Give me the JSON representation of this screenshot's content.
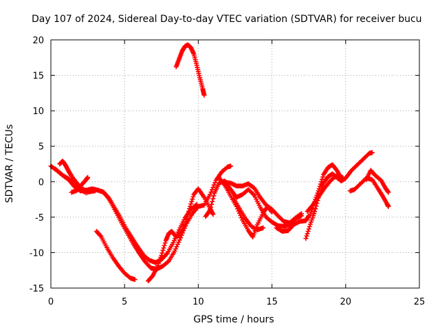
{
  "chart_data": {
    "type": "scatter",
    "title": "Day 107 of 2024, Sidereal Day-to-day VTEC variation (SDTVAR) for receiver bucu",
    "xlabel": "GPS time / hours",
    "ylabel": "SDTVAR / TECUs",
    "xlim": [
      0,
      25
    ],
    "ylim": [
      -15,
      20
    ],
    "xticks": [
      0,
      5,
      10,
      15,
      20,
      25
    ],
    "yticks": [
      -15,
      -10,
      -5,
      0,
      5,
      10,
      15,
      20
    ],
    "xtick_labels": [
      "0",
      "5",
      "10",
      "15",
      "20",
      "25"
    ],
    "ytick_labels": [
      "-15",
      "-10",
      "-5",
      "0",
      "5",
      "10",
      "15",
      "20"
    ],
    "grid": true,
    "marker": "+",
    "color": "#ff0000",
    "series": [
      {
        "name": "track-1",
        "points": [
          [
            0.0,
            2.2
          ],
          [
            0.4,
            1.6
          ],
          [
            0.8,
            0.9
          ],
          [
            1.2,
            0.3
          ],
          [
            1.6,
            -0.7
          ],
          [
            2.0,
            -1.3
          ],
          [
            2.4,
            -1.2
          ],
          [
            2.8,
            -1.0
          ],
          [
            3.2,
            -1.2
          ],
          [
            3.6,
            -1.5
          ],
          [
            4.0,
            -2.6
          ],
          [
            4.4,
            -4.2
          ],
          [
            4.8,
            -5.8
          ],
          [
            5.2,
            -7.3
          ],
          [
            5.6,
            -8.8
          ],
          [
            6.0,
            -10.1
          ],
          [
            6.4,
            -11.3
          ],
          [
            6.8,
            -12.2
          ],
          [
            7.2,
            -12.3
          ],
          [
            7.6,
            -11.9
          ],
          [
            8.0,
            -11.2
          ],
          [
            8.4,
            -9.8
          ],
          [
            8.8,
            -7.9
          ],
          [
            9.2,
            -5.9
          ],
          [
            9.6,
            -4.5
          ],
          [
            10.0,
            -3.5
          ],
          [
            10.4,
            -3.3
          ],
          [
            10.8,
            -1.8
          ],
          [
            11.2,
            0.2
          ],
          [
            11.6,
            1.4
          ],
          [
            12.0,
            2.1
          ],
          [
            12.2,
            2.2
          ]
        ]
      },
      {
        "name": "track-2",
        "points": [
          [
            0.3,
            1.8
          ],
          [
            0.8,
            0.9
          ],
          [
            1.3,
            0.3
          ],
          [
            1.8,
            -0.9
          ],
          [
            2.4,
            -1.6
          ],
          [
            3.0,
            -1.1
          ],
          [
            3.5,
            -1.4
          ],
          [
            3.9,
            -2.2
          ],
          [
            4.3,
            -3.6
          ],
          [
            4.7,
            -5.0
          ],
          [
            5.1,
            -6.6
          ],
          [
            5.5,
            -7.9
          ],
          [
            5.9,
            -9.2
          ],
          [
            6.3,
            -10.4
          ],
          [
            6.7,
            -11.1
          ],
          [
            7.1,
            -11.4
          ],
          [
            7.5,
            -11.0
          ],
          [
            7.9,
            -10.1
          ],
          [
            8.3,
            -8.6
          ],
          [
            8.7,
            -6.8
          ],
          [
            9.1,
            -5.1
          ],
          [
            9.5,
            -3.9
          ],
          [
            9.9,
            -3.2
          ]
        ]
      },
      {
        "name": "track-3",
        "points": [
          [
            0.6,
            2.5
          ],
          [
            0.8,
            2.9
          ],
          [
            1.0,
            2.3
          ],
          [
            1.2,
            1.5
          ],
          [
            1.4,
            0.8
          ],
          [
            1.8,
            -0.3
          ],
          [
            2.2,
            -1.1
          ],
          [
            2.6,
            -1.4
          ],
          [
            3.0,
            -1.3
          ]
        ]
      },
      {
        "name": "track-4",
        "points": [
          [
            1.4,
            -1.5
          ],
          [
            1.8,
            -1.2
          ],
          [
            2.1,
            -0.4
          ],
          [
            2.4,
            0.3
          ],
          [
            2.5,
            0.6
          ]
        ]
      },
      {
        "name": "track-5",
        "points": [
          [
            3.1,
            -7.0
          ],
          [
            3.4,
            -7.7
          ],
          [
            3.8,
            -9.3
          ],
          [
            4.2,
            -10.7
          ],
          [
            4.6,
            -11.9
          ],
          [
            5.0,
            -12.9
          ],
          [
            5.4,
            -13.6
          ],
          [
            5.7,
            -13.8
          ]
        ]
      },
      {
        "name": "track-6",
        "points": [
          [
            6.6,
            -14.0
          ],
          [
            6.9,
            -13.3
          ],
          [
            7.2,
            -12.1
          ],
          [
            7.5,
            -10.4
          ],
          [
            7.8,
            -8.3
          ],
          [
            8.0,
            -7.3
          ],
          [
            8.2,
            -7.0
          ],
          [
            8.5,
            -7.8
          ],
          [
            8.8,
            -7.4
          ],
          [
            9.1,
            -6.1
          ],
          [
            9.4,
            -3.8
          ],
          [
            9.7,
            -1.8
          ],
          [
            10.0,
            -1.0
          ],
          [
            10.4,
            -2.2
          ],
          [
            10.8,
            -3.8
          ],
          [
            11.0,
            -4.6
          ]
        ]
      },
      {
        "name": "track-7",
        "points": [
          [
            10.5,
            -4.9
          ],
          [
            10.8,
            -4.0
          ],
          [
            11.1,
            -1.6
          ],
          [
            11.4,
            -0.2
          ],
          [
            11.8,
            0.1
          ],
          [
            12.2,
            -1.1
          ],
          [
            12.6,
            -2.2
          ],
          [
            13.0,
            -1.8
          ],
          [
            13.4,
            -1.1
          ],
          [
            13.8,
            -1.9
          ],
          [
            14.2,
            -3.6
          ],
          [
            14.6,
            -5.0
          ],
          [
            15.0,
            -5.7
          ],
          [
            15.4,
            -6.2
          ],
          [
            15.8,
            -6.3
          ],
          [
            16.2,
            -6.1
          ],
          [
            16.6,
            -5.2
          ],
          [
            17.0,
            -4.8
          ]
        ]
      },
      {
        "name": "track-8",
        "points": [
          [
            11.4,
            0.6
          ],
          [
            11.8,
            -0.5
          ],
          [
            12.2,
            -2.0
          ],
          [
            12.6,
            -3.5
          ],
          [
            13.0,
            -5.4
          ],
          [
            13.4,
            -6.9
          ],
          [
            13.7,
            -7.8
          ],
          [
            14.0,
            -6.1
          ],
          [
            14.4,
            -4.4
          ],
          [
            14.7,
            -3.5
          ],
          [
            15.0,
            -4.3
          ]
        ]
      },
      {
        "name": "track-9",
        "points": [
          [
            11.7,
            0.0
          ],
          [
            12.2,
            -0.2
          ],
          [
            12.6,
            -0.6
          ],
          [
            13.0,
            -0.6
          ],
          [
            13.4,
            -0.3
          ],
          [
            13.8,
            -0.9
          ],
          [
            14.2,
            -2.2
          ],
          [
            14.6,
            -3.3
          ],
          [
            15.0,
            -3.9
          ],
          [
            15.4,
            -4.8
          ],
          [
            15.8,
            -5.6
          ],
          [
            16.2,
            -5.8
          ],
          [
            16.6,
            -5.1
          ],
          [
            17.0,
            -4.5
          ]
        ]
      },
      {
        "name": "track-10",
        "points": [
          [
            12.4,
            -2.4
          ],
          [
            12.8,
            -3.8
          ],
          [
            13.2,
            -5.2
          ],
          [
            13.6,
            -6.3
          ],
          [
            14.0,
            -6.8
          ],
          [
            14.4,
            -6.5
          ]
        ]
      },
      {
        "name": "track-11",
        "points": [
          [
            15.3,
            -6.5
          ],
          [
            15.7,
            -7.0
          ],
          [
            16.1,
            -6.9
          ],
          [
            16.5,
            -6.0
          ],
          [
            16.9,
            -5.6
          ],
          [
            17.3,
            -5.5
          ],
          [
            17.5,
            -4.8
          ]
        ]
      },
      {
        "name": "track-12",
        "points": [
          [
            17.3,
            -8.0
          ],
          [
            17.6,
            -6.0
          ],
          [
            17.9,
            -4.2
          ],
          [
            18.2,
            -1.9
          ],
          [
            18.5,
            -0.2
          ],
          [
            18.8,
            0.7
          ],
          [
            19.1,
            1.1
          ],
          [
            19.4,
            0.6
          ],
          [
            19.7,
            0.1
          ],
          [
            20.0,
            0.5
          ],
          [
            20.4,
            1.6
          ],
          [
            20.8,
            2.4
          ],
          [
            21.2,
            3.2
          ],
          [
            21.6,
            4.0
          ],
          [
            21.8,
            4.1
          ]
        ]
      },
      {
        "name": "track-13",
        "points": [
          [
            17.6,
            -4.6
          ],
          [
            17.9,
            -2.8
          ],
          [
            18.2,
            -1.0
          ],
          [
            18.5,
            1.0
          ],
          [
            18.8,
            2.0
          ],
          [
            19.1,
            2.4
          ],
          [
            19.4,
            1.6
          ],
          [
            19.7,
            0.5
          ]
        ]
      },
      {
        "name": "track-14",
        "points": [
          [
            17.4,
            -4.2
          ],
          [
            17.8,
            -3.2
          ],
          [
            18.2,
            -2.0
          ],
          [
            18.6,
            -0.8
          ],
          [
            19.0,
            0.2
          ],
          [
            19.4,
            0.9
          ],
          [
            19.8,
            0.6
          ]
        ]
      },
      {
        "name": "track-15",
        "points": [
          [
            20.3,
            -1.3
          ],
          [
            20.6,
            -1.1
          ],
          [
            21.0,
            -0.3
          ],
          [
            21.4,
            0.5
          ],
          [
            21.8,
            0.3
          ],
          [
            22.2,
            -1.0
          ],
          [
            22.5,
            -2.0
          ],
          [
            22.8,
            -3.1
          ],
          [
            22.9,
            -3.5
          ]
        ]
      },
      {
        "name": "track-16",
        "points": [
          [
            21.4,
            0.3
          ],
          [
            21.7,
            1.6
          ],
          [
            22.0,
            0.9
          ],
          [
            22.4,
            0.2
          ],
          [
            22.7,
            -0.9
          ],
          [
            22.9,
            -1.5
          ]
        ]
      },
      {
        "name": "track-17",
        "points": [
          [
            8.5,
            16.2
          ],
          [
            8.7,
            17.3
          ],
          [
            8.9,
            18.4
          ],
          [
            9.1,
            19.1
          ],
          [
            9.3,
            19.3
          ],
          [
            9.5,
            18.9
          ],
          [
            9.7,
            18.0
          ],
          [
            9.9,
            16.4
          ],
          [
            10.1,
            14.7
          ],
          [
            10.3,
            13.1
          ],
          [
            10.4,
            12.2
          ]
        ]
      }
    ]
  }
}
